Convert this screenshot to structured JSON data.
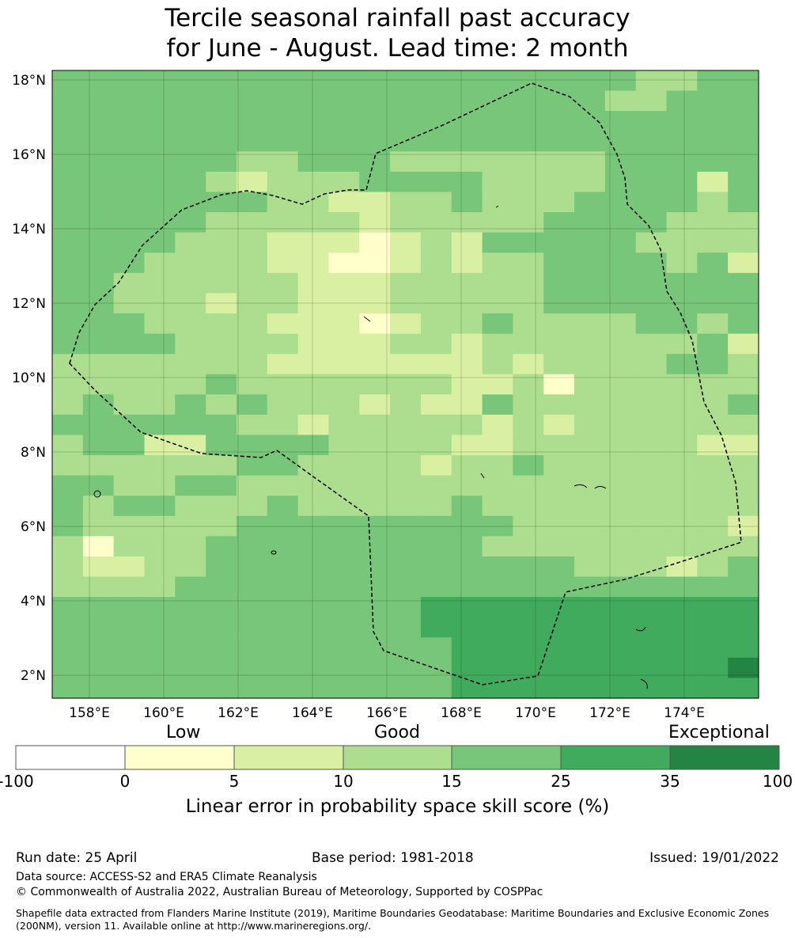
{
  "title": {
    "line1": "Tercile seasonal rainfall past accuracy",
    "line2": "for June - August. Lead time: 2 month"
  },
  "map": {
    "lat_labels": [
      "18°N",
      "16°N",
      "14°N",
      "12°N",
      "10°N",
      "8°N",
      "6°N",
      "4°N",
      "2°N"
    ],
    "lon_labels": [
      "158°E",
      "160°E",
      "162°E",
      "164°E",
      "166°E",
      "168°E",
      "170°E",
      "172°E",
      "174°E"
    ],
    "region": "Marshall Islands EEZ (dashed boundary)"
  },
  "colorbar": {
    "categories": {
      "low": "Low",
      "good": "Good",
      "exceptional": "Exceptional"
    },
    "ticks": [
      "-100",
      "0",
      "5",
      "10",
      "15",
      "25",
      "35",
      "100"
    ],
    "colors": [
      "#ffffff",
      "#ffffcc",
      "#d9f0a3",
      "#addd8e",
      "#78c679",
      "#41ab5d",
      "#238443"
    ],
    "label": "Linear error in probability space skill score (%)"
  },
  "footer": {
    "run_date": "Run date: 25 April",
    "base_period": "Base period: 1981-2018",
    "issued": "Issued: 19/01/2022",
    "data_source": "Data source: ACCESS-S2 and ERA5 Climate Reanalysis",
    "copyright": "© Commonwealth of Australia 2022, Australian Bureau of Meteorology, Supported by COSPPac",
    "shapefile": "Shapefile data extracted from Flanders Marine Institute (2019), Maritime Boundaries Geodatabase: Maritime Boundaries and Exclusive Economic Zones (200NM), version 11. Available online at http://www.marineregions.org/."
  }
}
